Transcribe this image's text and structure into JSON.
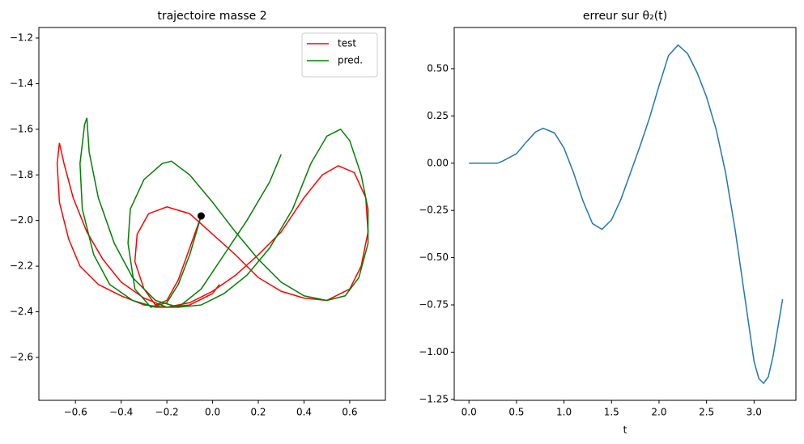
{
  "chart_data": [
    {
      "type": "line",
      "title": "trajectoire masse 2",
      "xlim": [
        -0.76,
        0.756
      ],
      "ylim": [
        -2.788,
        -1.154
      ],
      "xticks": [
        {
          "value": -0.6,
          "label": "−0.6"
        },
        {
          "value": -0.4,
          "label": "−0.4"
        },
        {
          "value": -0.2,
          "label": "−0.2"
        },
        {
          "value": 0,
          "label": "0.0"
        },
        {
          "value": 0.2,
          "label": "0.2"
        },
        {
          "value": 0.4,
          "label": "0.4"
        },
        {
          "value": 0.6,
          "label": "0.6"
        }
      ],
      "yticks": [
        {
          "value": -2.6,
          "label": "−2.6"
        },
        {
          "value": -2.4,
          "label": "−2.4"
        },
        {
          "value": -2.2,
          "label": "−2.2"
        },
        {
          "value": -2.0,
          "label": "−2.0"
        },
        {
          "value": -1.8,
          "label": "−1.8"
        },
        {
          "value": -1.6,
          "label": "−1.6"
        },
        {
          "value": -1.4,
          "label": "−1.4"
        },
        {
          "value": -1.2,
          "label": "−1.2"
        }
      ],
      "legend": "upper right",
      "series": [
        {
          "name": "test",
          "color": "#ff0000",
          "x": [
            -0.05,
            -0.1,
            -0.15,
            -0.2,
            -0.25,
            -0.3,
            -0.34,
            -0.33,
            -0.28,
            -0.2,
            -0.1,
            0.0,
            0.1,
            0.2,
            0.3,
            0.4,
            0.5,
            0.6,
            0.65,
            0.68,
            0.67,
            0.62,
            0.55,
            0.48,
            0.4,
            0.3,
            0.2,
            0.1,
            0.0,
            -0.1,
            -0.2,
            -0.3,
            -0.4,
            -0.5,
            -0.58,
            -0.63,
            -0.67,
            -0.68,
            -0.67,
            -0.65,
            -0.61,
            -0.55,
            -0.48,
            -0.4,
            -0.3,
            -0.2,
            -0.1,
            0.0,
            0.03
          ],
          "values": [
            -1.98,
            -2.12,
            -2.26,
            -2.35,
            -2.37,
            -2.3,
            -2.18,
            -2.06,
            -1.97,
            -1.94,
            -1.97,
            -2.06,
            -2.15,
            -2.25,
            -2.31,
            -2.34,
            -2.35,
            -2.3,
            -2.2,
            -2.05,
            -1.9,
            -1.79,
            -1.76,
            -1.8,
            -1.9,
            -2.05,
            -2.15,
            -2.24,
            -2.31,
            -2.36,
            -2.38,
            -2.37,
            -2.33,
            -2.28,
            -2.2,
            -2.08,
            -1.92,
            -1.75,
            -1.66,
            -1.75,
            -1.9,
            -2.05,
            -2.17,
            -2.27,
            -2.34,
            -2.38,
            -2.37,
            -2.32,
            -2.28
          ]
        },
        {
          "name": "pred.",
          "color": "#008000",
          "x": [
            -0.05,
            -0.1,
            -0.15,
            -0.2,
            -0.27,
            -0.34,
            -0.37,
            -0.36,
            -0.3,
            -0.22,
            -0.18,
            -0.1,
            0.0,
            0.1,
            0.2,
            0.3,
            0.4,
            0.5,
            0.58,
            0.64,
            0.68,
            0.68,
            0.65,
            0.6,
            0.56,
            0.5,
            0.43,
            0.35,
            0.25,
            0.15,
            0.05,
            -0.05,
            -0.15,
            -0.25,
            -0.35,
            -0.45,
            -0.52,
            -0.57,
            -0.58,
            -0.56,
            -0.55,
            -0.54,
            -0.5,
            -0.43,
            -0.35,
            -0.25,
            -0.15,
            -0.05,
            0.05,
            0.15,
            0.25,
            0.3
          ],
          "values": [
            -1.98,
            -2.15,
            -2.28,
            -2.36,
            -2.38,
            -2.3,
            -2.1,
            -1.95,
            -1.82,
            -1.75,
            -1.74,
            -1.8,
            -1.92,
            -2.05,
            -2.17,
            -2.27,
            -2.33,
            -2.35,
            -2.33,
            -2.25,
            -2.1,
            -1.95,
            -1.8,
            -1.65,
            -1.6,
            -1.63,
            -1.75,
            -1.95,
            -2.12,
            -2.24,
            -2.32,
            -2.37,
            -2.38,
            -2.38,
            -2.35,
            -2.28,
            -2.15,
            -1.95,
            -1.75,
            -1.58,
            -1.55,
            -1.7,
            -1.9,
            -2.1,
            -2.25,
            -2.35,
            -2.38,
            -2.3,
            -2.15,
            -2.0,
            -1.83,
            -1.71
          ]
        }
      ],
      "points": {
        "x": [
          -0.05
        ],
        "y": [
          -1.98
        ],
        "color": "#000000"
      }
    },
    {
      "type": "line",
      "title": "erreur sur θ₂(t)",
      "x_label": "t",
      "xlim": [
        -0.155,
        3.44
      ],
      "ylim": [
        -1.255,
        0.718
      ],
      "xticks": [
        {
          "value": 0,
          "label": "0.0"
        },
        {
          "value": 0.5,
          "label": "0.5"
        },
        {
          "value": 1,
          "label": "1.0"
        },
        {
          "value": 1.5,
          "label": "1.5"
        },
        {
          "value": 2,
          "label": "2.0"
        },
        {
          "value": 2.5,
          "label": "2.5"
        },
        {
          "value": 3,
          "label": "3.0"
        }
      ],
      "yticks": [
        {
          "value": -1.25,
          "label": "−1.25"
        },
        {
          "value": -1,
          "label": "−1.00"
        },
        {
          "value": -0.75,
          "label": "−0.75"
        },
        {
          "value": -0.5,
          "label": "−0.50"
        },
        {
          "value": -0.25,
          "label": "−0.25"
        },
        {
          "value": 0,
          "label": "0.00"
        },
        {
          "value": 0.25,
          "label": "0.25"
        },
        {
          "value": 0.5,
          "label": "0.50"
        }
      ],
      "x": [
        0,
        0.3,
        0.35,
        0.5,
        0.6,
        0.7,
        0.78,
        0.9,
        1.0,
        1.1,
        1.2,
        1.3,
        1.4,
        1.5,
        1.6,
        1.7,
        1.8,
        1.9,
        2.0,
        2.1,
        2.2,
        2.3,
        2.4,
        2.5,
        2.6,
        2.7,
        2.8,
        2.9,
        3.0,
        3.05,
        3.1,
        3.15,
        3.2,
        3.3
      ],
      "series": [
        {
          "color": "#1f77b4",
          "values": [
            0,
            0,
            0.01,
            0.05,
            0.11,
            0.165,
            0.185,
            0.16,
            0.08,
            -0.05,
            -0.2,
            -0.32,
            -0.35,
            -0.3,
            -0.19,
            -0.05,
            0.09,
            0.24,
            0.41,
            0.57,
            0.625,
            0.58,
            0.48,
            0.35,
            0.18,
            -0.05,
            -0.35,
            -0.7,
            -1.05,
            -1.14,
            -1.165,
            -1.13,
            -1.02,
            -0.72
          ]
        }
      ]
    }
  ]
}
